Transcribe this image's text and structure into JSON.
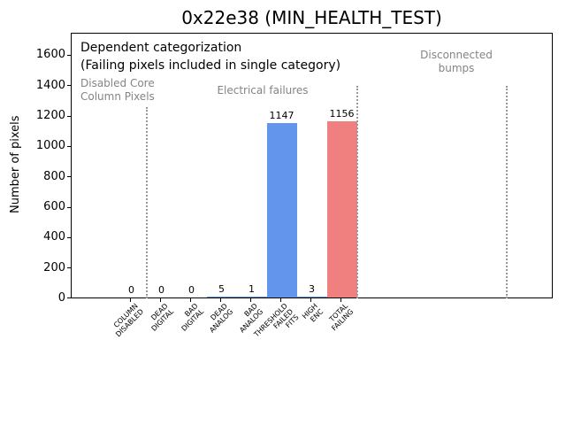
{
  "title": "0x22e38 (MIN_HEALTH_TEST)",
  "ylabel": "Number of pixels",
  "annotations": {
    "line1": "Dependent categorization",
    "line2": "(Failing pixels included in single category)",
    "disabled_core_line1": "Disabled Core",
    "disabled_core_line2": "Column Pixels",
    "electrical": "Electrical failures",
    "disconnected_line1": "Disconnected",
    "disconnected_line2": "bumps"
  },
  "chart_data": {
    "type": "bar",
    "title": "0x22e38 (MIN_HEALTH_TEST)",
    "xlabel": "",
    "ylabel": "Number of pixels",
    "categories": [
      "COLUMN DISABLED",
      "DEAD DIGITAL",
      "BAD DIGITAL",
      "DEAD ANALOG",
      "BAD ANALOG",
      "THRESHOLD FAILED FITS",
      "HIGH ENC",
      "TOTAL FAILING"
    ],
    "category_lines": [
      [
        "COLUMN",
        "DISABLED"
      ],
      [
        "DEAD",
        "DIGITAL"
      ],
      [
        "BAD",
        "DIGITAL"
      ],
      [
        "DEAD",
        "ANALOG"
      ],
      [
        "BAD",
        "ANALOG"
      ],
      [
        "THRESHOLD",
        "FAILED",
        "FITS"
      ],
      [
        "HIGH",
        "ENC"
      ],
      [
        "TOTAL",
        "FAILING"
      ]
    ],
    "values": [
      0,
      0,
      0,
      5,
      1,
      1147,
      3,
      1156
    ],
    "bar_labels": [
      "0",
      "0",
      "0",
      "5",
      "1",
      "1147",
      "3",
      "1156"
    ],
    "bar_colors": [
      "#6495ED",
      "#6495ED",
      "#6495ED",
      "#6495ED",
      "#6495ED",
      "#6495ED",
      "#6495ED",
      "#F08080"
    ],
    "ylim": [
      0,
      1745
    ],
    "yticks": [
      0,
      200,
      400,
      600,
      800,
      1000,
      1200,
      1400,
      1600
    ],
    "ytick_labels": [
      "0",
      "200",
      "400",
      "600",
      "800",
      "1000",
      "1200",
      "1400",
      "1600"
    ],
    "grid": false,
    "legend": null,
    "region_labels": [
      "Disabled Core Column Pixels",
      "Electrical failures",
      "Disconnected bumps"
    ]
  },
  "colors": {
    "bar_blue": "#6495ED",
    "bar_red": "#F08080",
    "annotation_gray": "#848484",
    "divider_gray": "#999999"
  }
}
